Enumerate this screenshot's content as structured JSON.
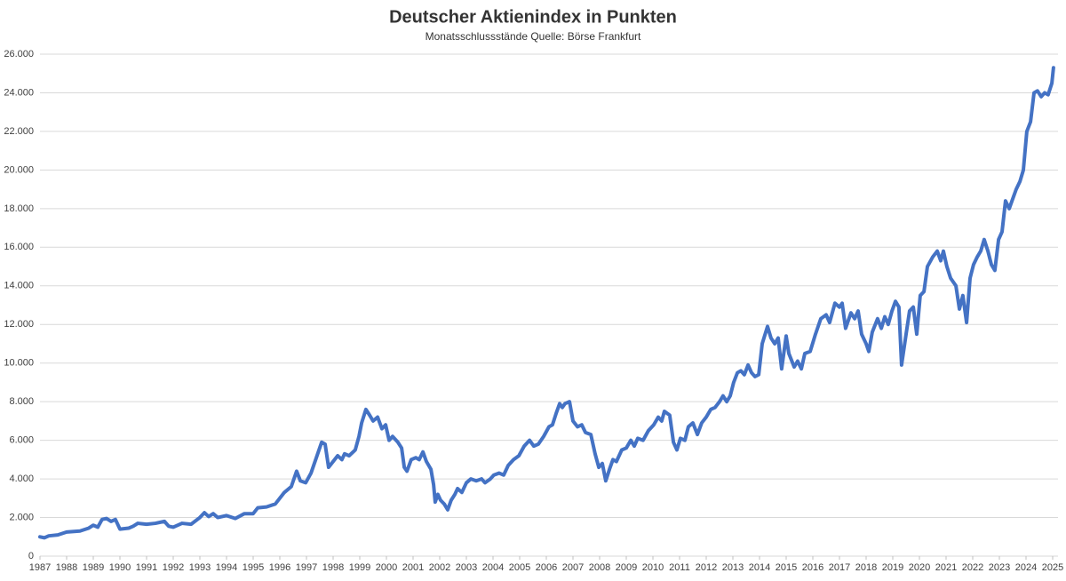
{
  "chart_data": {
    "type": "line",
    "title": "Deutscher Aktienindex in Punkten",
    "subtitle": "Monatsschlussstände Quelle: Börse Frankfurt",
    "color": "#4472c4",
    "grid": true,
    "xlim": [
      1987,
      2025.2
    ],
    "xticks": [
      1987,
      1988,
      1989,
      1990,
      1991,
      1992,
      1993,
      1994,
      1995,
      1996,
      1997,
      1998,
      1999,
      2000,
      2001,
      2002,
      2003,
      2004,
      2005,
      2006,
      2007,
      2008,
      2009,
      2010,
      2011,
      2012,
      2013,
      2014,
      2015,
      2016,
      2017,
      2018,
      2019,
      2020,
      2021,
      2022,
      2023,
      2024,
      2025
    ],
    "ylim": [
      0,
      26000
    ],
    "yticks": [
      0,
      {
        "value": 2000,
        "label": "2.000"
      },
      {
        "value": 4000,
        "label": "4.000"
      },
      {
        "value": 6000,
        "label": "6.000"
      },
      {
        "value": 8000,
        "label": "8.000"
      },
      {
        "value": 10000,
        "label": "10.000"
      },
      {
        "value": 12000,
        "label": "12.000"
      },
      {
        "value": 14000,
        "label": "14.000"
      },
      {
        "value": 16000,
        "label": "16.000"
      },
      {
        "value": 18000,
        "label": "18.000"
      },
      {
        "value": 20000,
        "label": "20.000"
      },
      {
        "value": 22000,
        "label": "22.000"
      },
      {
        "value": 24000,
        "label": "24.000"
      },
      {
        "value": 26000,
        "label": "26.000"
      }
    ],
    "x": [
      1987.0,
      1987.17,
      1987.33,
      1987.67,
      1988.0,
      1988.5,
      1988.83,
      1989.0,
      1989.17,
      1989.33,
      1989.5,
      1989.67,
      1989.83,
      1990.0,
      1990.33,
      1990.5,
      1990.67,
      1991.0,
      1991.33,
      1991.67,
      1991.83,
      1992.0,
      1992.33,
      1992.67,
      1993.0,
      1993.17,
      1993.33,
      1993.5,
      1993.67,
      1994.0,
      1994.33,
      1994.67,
      1995.0,
      1995.17,
      1995.5,
      1995.83,
      1996.17,
      1996.43,
      1996.63,
      1996.77,
      1996.97,
      1997.17,
      1997.37,
      1997.57,
      1997.7,
      1997.83,
      1998.0,
      1998.17,
      1998.33,
      1998.43,
      1998.6,
      1998.83,
      1998.97,
      1999.07,
      1999.23,
      1999.37,
      1999.5,
      1999.67,
      1999.83,
      1999.97,
      2000.1,
      2000.23,
      2000.43,
      2000.57,
      2000.67,
      2000.77,
      2000.93,
      2001.1,
      2001.23,
      2001.37,
      2001.5,
      2001.67,
      2001.77,
      2001.83,
      2001.93,
      2002.03,
      2002.17,
      2002.3,
      2002.43,
      2002.57,
      2002.67,
      2002.83,
      2003.0,
      2003.17,
      2003.37,
      2003.57,
      2003.7,
      2003.9,
      2004.03,
      2004.23,
      2004.4,
      2004.57,
      2004.77,
      2004.97,
      2005.17,
      2005.37,
      2005.53,
      2005.7,
      2005.9,
      2006.1,
      2006.23,
      2006.37,
      2006.5,
      2006.6,
      2006.7,
      2006.87,
      2007.0,
      2007.17,
      2007.33,
      2007.47,
      2007.67,
      2007.83,
      2007.97,
      2008.1,
      2008.23,
      2008.37,
      2008.5,
      2008.63,
      2008.83,
      2009.0,
      2009.17,
      2009.3,
      2009.43,
      2009.63,
      2009.83,
      2010.03,
      2010.2,
      2010.33,
      2010.43,
      2010.63,
      2010.77,
      2010.9,
      2011.03,
      2011.2,
      2011.33,
      2011.5,
      2011.67,
      2011.83,
      2012.0,
      2012.17,
      2012.33,
      2012.5,
      2012.63,
      2012.77,
      2012.9,
      2013.03,
      2013.17,
      2013.3,
      2013.43,
      2013.57,
      2013.7,
      2013.83,
      2013.97,
      2014.1,
      2014.3,
      2014.43,
      2014.57,
      2014.7,
      2014.83,
      2015.0,
      2015.1,
      2015.3,
      2015.43,
      2015.57,
      2015.7,
      2015.9,
      2016.1,
      2016.3,
      2016.5,
      2016.63,
      2016.83,
      2017.0,
      2017.1,
      2017.23,
      2017.43,
      2017.57,
      2017.7,
      2017.83,
      2018.0,
      2018.1,
      2018.23,
      2018.43,
      2018.57,
      2018.7,
      2018.83,
      2018.97,
      2019.1,
      2019.23,
      2019.33,
      2019.5,
      2019.63,
      2019.77,
      2019.9,
      2020.03,
      2020.17,
      2020.3,
      2020.5,
      2020.67,
      2020.8,
      2020.9,
      2021.03,
      2021.17,
      2021.37,
      2021.5,
      2021.63,
      2021.77,
      2021.9,
      2022.03,
      2022.17,
      2022.3,
      2022.43,
      2022.57,
      2022.7,
      2022.83,
      2022.97,
      2023.1,
      2023.23,
      2023.37,
      2023.5,
      2023.63,
      2023.77,
      2023.9,
      2024.03,
      2024.17,
      2024.3,
      2024.43,
      2024.57,
      2024.7,
      2024.83,
      2024.97,
      2025.03
    ],
    "values": [
      1000,
      950,
      1050,
      1100,
      1250,
      1300,
      1450,
      1600,
      1500,
      1900,
      1950,
      1800,
      1900,
      1400,
      1450,
      1550,
      1700,
      1650,
      1700,
      1800,
      1550,
      1500,
      1700,
      1650,
      2000,
      2250,
      2050,
      2200,
      2000,
      2100,
      1950,
      2200,
      2200,
      2500,
      2550,
      2700,
      3300,
      3600,
      4400,
      3900,
      3800,
      4300,
      5100,
      5900,
      5800,
      4600,
      4900,
      5200,
      5000,
      5300,
      5200,
      5500,
      6200,
      6900,
      7600,
      7300,
      7000,
      7200,
      6600,
      6800,
      6000,
      6200,
      5900,
      5600,
      4600,
      4400,
      5000,
      5100,
      5000,
      5400,
      4900,
      4500,
      3700,
      2800,
      3200,
      2900,
      2700,
      2400,
      2900,
      3200,
      3500,
      3300,
      3800,
      4000,
      3900,
      4000,
      3800,
      4000,
      4200,
      4300,
      4200,
      4700,
      5000,
      5200,
      5700,
      6000,
      5700,
      5800,
      6200,
      6700,
      6800,
      7400,
      7900,
      7700,
      7900,
      8000,
      7000,
      6700,
      6800,
      6400,
      6300,
      5300,
      4600,
      4800,
      3900,
      4500,
      5000,
      4900,
      5500,
      5600,
      6000,
      5700,
      6100,
      6000,
      6500,
      6800,
      7200,
      7000,
      7500,
      7300,
      5900,
      5500,
      6100,
      6000,
      6700,
      6900,
      6300,
      6900,
      7200,
      7600,
      7700,
      8000,
      8300,
      8000,
      8300,
      9000,
      9500,
      9600,
      9400,
      9900,
      9500,
      9300,
      9400,
      11000,
      11900,
      11300,
      11000,
      11300,
      9700,
      11400,
      10500,
      9800,
      10100,
      9700,
      10500,
      10600,
      11500,
      12300,
      12500,
      12100,
      13100,
      12900,
      13100,
      11800,
      12600,
      12300,
      12700,
      11500,
      11000,
      10600,
      11600,
      12300,
      11800,
      12400,
      12000,
      12700,
      13200,
      12900,
      9900,
      11500,
      12700,
      12900,
      11500,
      13500,
      13700,
      15000,
      15500,
      15800,
      15300,
      15800,
      15000,
      14400,
      14000,
      12800,
      13500,
      12100,
      14400,
      15100,
      15500,
      15800,
      16400,
      15800,
      15100,
      14800,
      16400,
      16800,
      18400,
      18000,
      18500,
      19000,
      19400,
      20000,
      22000,
      22500,
      24000,
      24100,
      23800,
      24000,
      23900,
      24500,
      25300
    ]
  }
}
